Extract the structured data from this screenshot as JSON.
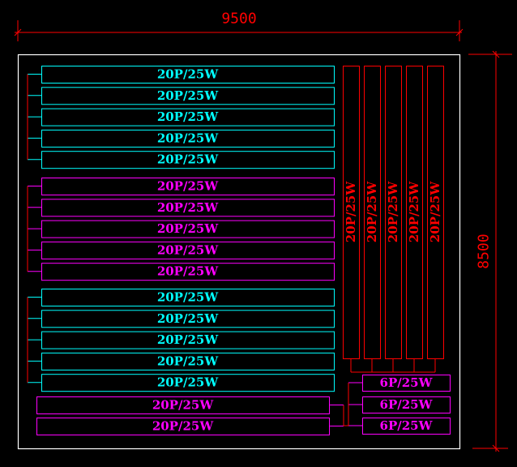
{
  "colors": {
    "background": "#000000",
    "border": "#ffffff",
    "cyan": "#00ffff",
    "magenta": "#ff00ff",
    "red": "#ff0000"
  },
  "dimensions": {
    "width": "9500",
    "height": "8500"
  },
  "groups": [
    {
      "color": "cyan",
      "fixtures": [
        "20P/25W",
        "20P/25W",
        "20P/25W",
        "20P/25W",
        "20P/25W"
      ]
    },
    {
      "color": "magenta",
      "fixtures": [
        "20P/25W",
        "20P/25W",
        "20P/25W",
        "20P/25W",
        "20P/25W"
      ]
    },
    {
      "color": "cyan",
      "fixtures": [
        "20P/25W",
        "20P/25W",
        "20P/25W",
        "20P/25W",
        "20P/25W"
      ]
    }
  ],
  "bottom_fixtures": [
    "20P/25W",
    "20P/25W"
  ],
  "vertical_fixtures": [
    "20P/25W",
    "20P/25W",
    "20P/25W",
    "20P/25W",
    "20P/25W"
  ],
  "small_fixtures": [
    "6P/25W",
    "6P/25W",
    "6P/25W"
  ]
}
